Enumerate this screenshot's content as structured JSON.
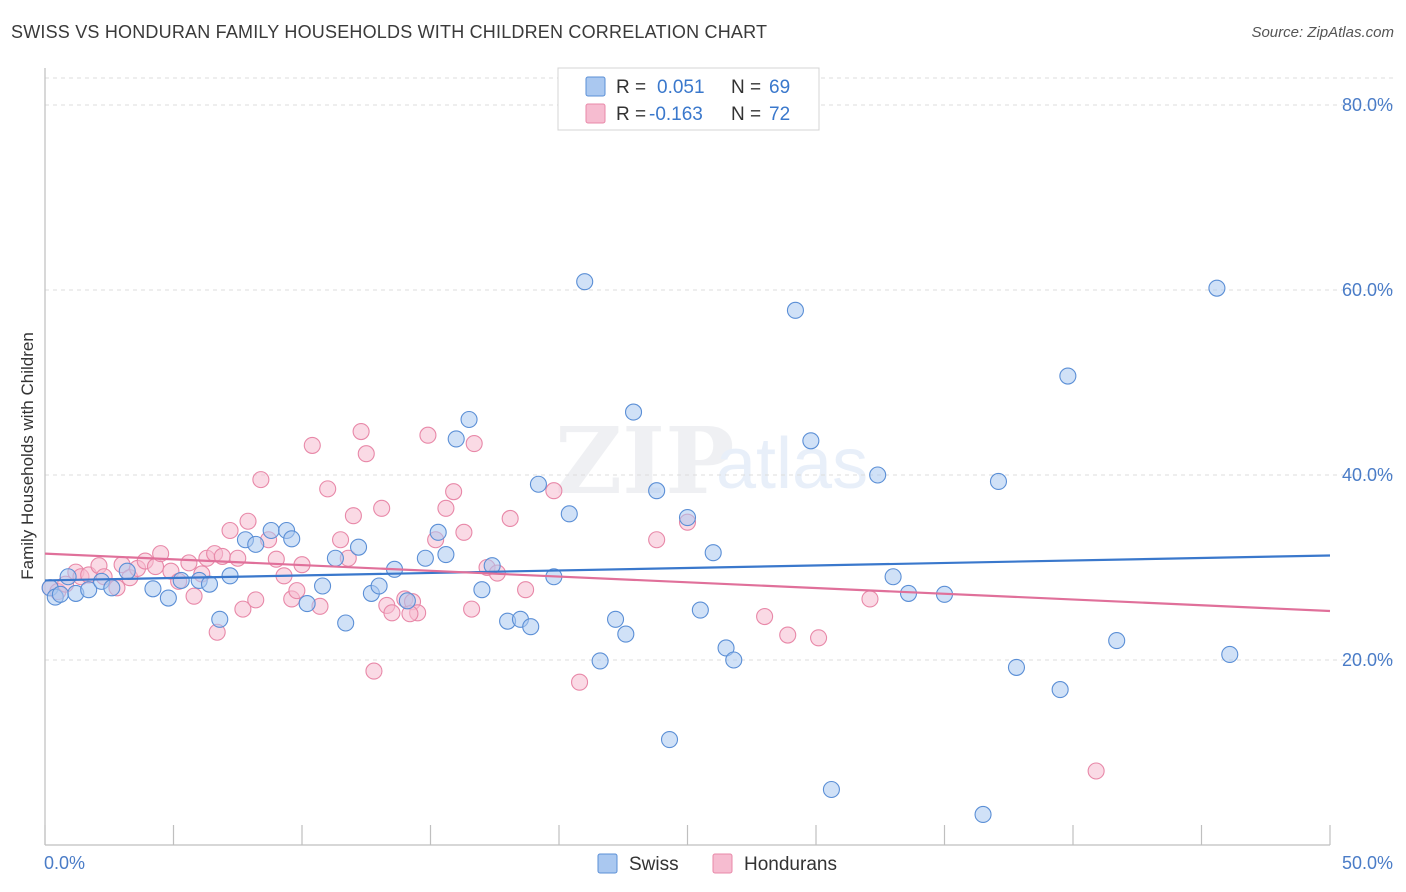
{
  "header": {
    "title": "SWISS VS HONDURAN FAMILY HOUSEHOLDS WITH CHILDREN CORRELATION CHART",
    "source": "Source: ZipAtlas.com"
  },
  "watermark": {
    "zip": "ZIP",
    "atlas": "atlas"
  },
  "colors": {
    "swiss_fill": "#aac8f0",
    "swiss_stroke": "#5b8fd6",
    "swiss_line": "#3a78cc",
    "hond_fill": "#f6bcd0",
    "hond_stroke": "#e888a8",
    "hond_line": "#e0709a",
    "tick_text": "#4a7cc7",
    "grid": "#dcdcdc"
  },
  "legend": {
    "rows": [
      {
        "r_label": "R =",
        "r_value": "0.051",
        "n_label": "N =",
        "n_value": "69"
      },
      {
        "r_label": "R =",
        "r_value": "-0.163",
        "n_label": "N =",
        "n_value": "72"
      }
    ]
  },
  "bottom_legend": {
    "items": [
      "Swiss",
      "Hondurans"
    ]
  },
  "chart_data": {
    "type": "scatter",
    "title": "SWISS VS HONDURAN FAMILY HOUSEHOLDS WITH CHILDREN CORRELATION CHART",
    "ylabel": "Family Households with Children",
    "xlabel": "",
    "xlim": [
      0,
      50
    ],
    "ylim": [
      0,
      84
    ],
    "x_tick_labels": [
      "0.0%",
      "50.0%"
    ],
    "y_ticks": [
      20,
      40,
      60,
      80
    ],
    "y_tick_labels": [
      "20.0%",
      "40.0%",
      "60.0%",
      "80.0%"
    ],
    "grid": "horizontal dashed",
    "series": [
      {
        "name": "Swiss",
        "r": 0.051,
        "n": 69,
        "trend": {
          "x": [
            0,
            50
          ],
          "y": [
            28.6,
            31.3
          ]
        },
        "points": [
          [
            0.2,
            27.8
          ],
          [
            0.4,
            26.8
          ],
          [
            0.6,
            27.1
          ],
          [
            0.9,
            29.0
          ],
          [
            1.2,
            27.2
          ],
          [
            1.7,
            27.6
          ],
          [
            2.2,
            28.5
          ],
          [
            2.6,
            27.8
          ],
          [
            3.2,
            29.6
          ],
          [
            4.2,
            27.7
          ],
          [
            4.8,
            26.7
          ],
          [
            5.3,
            28.6
          ],
          [
            6.0,
            28.6
          ],
          [
            6.4,
            28.2
          ],
          [
            6.8,
            24.4
          ],
          [
            7.2,
            29.1
          ],
          [
            7.8,
            33.0
          ],
          [
            8.2,
            32.5
          ],
          [
            8.8,
            34.0
          ],
          [
            9.4,
            34.0
          ],
          [
            9.6,
            33.1
          ],
          [
            10.2,
            26.1
          ],
          [
            10.8,
            28.0
          ],
          [
            11.3,
            31.0
          ],
          [
            11.7,
            24.0
          ],
          [
            12.2,
            32.2
          ],
          [
            12.7,
            27.2
          ],
          [
            13.0,
            28.0
          ],
          [
            13.6,
            29.8
          ],
          [
            14.1,
            26.4
          ],
          [
            14.8,
            31.0
          ],
          [
            15.3,
            33.8
          ],
          [
            15.6,
            31.4
          ],
          [
            16.0,
            43.9
          ],
          [
            16.5,
            46.0
          ],
          [
            17.0,
            27.6
          ],
          [
            17.4,
            30.2
          ],
          [
            18.0,
            24.2
          ],
          [
            18.5,
            24.4
          ],
          [
            18.9,
            23.6
          ],
          [
            19.2,
            39.0
          ],
          [
            19.8,
            29.0
          ],
          [
            20.4,
            35.8
          ],
          [
            21.0,
            60.9
          ],
          [
            21.6,
            19.9
          ],
          [
            22.2,
            24.4
          ],
          [
            22.6,
            22.8
          ],
          [
            22.9,
            46.8
          ],
          [
            23.8,
            38.3
          ],
          [
            24.3,
            11.4
          ],
          [
            25.0,
            35.4
          ],
          [
            25.5,
            25.4
          ],
          [
            26.0,
            31.6
          ],
          [
            26.5,
            21.3
          ],
          [
            26.8,
            20.0
          ],
          [
            29.2,
            57.8
          ],
          [
            29.8,
            43.7
          ],
          [
            30.6,
            6.0
          ],
          [
            32.4,
            40.0
          ],
          [
            33.0,
            29.0
          ],
          [
            33.6,
            27.2
          ],
          [
            35.0,
            27.1
          ],
          [
            36.5,
            3.3
          ],
          [
            37.1,
            39.3
          ],
          [
            37.8,
            19.2
          ],
          [
            39.5,
            16.8
          ],
          [
            39.8,
            50.7
          ],
          [
            41.7,
            22.1
          ],
          [
            45.6,
            60.2
          ],
          [
            46.1,
            20.6
          ]
        ]
      },
      {
        "name": "Hondurans",
        "r": -0.163,
        "n": 72,
        "trend": {
          "x": [
            0,
            50
          ],
          "y": [
            31.5,
            25.3
          ]
        },
        "points": [
          [
            0.2,
            27.8
          ],
          [
            0.5,
            27.4
          ],
          [
            0.8,
            28.2
          ],
          [
            1.2,
            29.5
          ],
          [
            1.4,
            29.0
          ],
          [
            1.7,
            29.2
          ],
          [
            2.1,
            30.2
          ],
          [
            2.3,
            29.0
          ],
          [
            2.8,
            27.8
          ],
          [
            3.0,
            30.3
          ],
          [
            3.3,
            28.9
          ],
          [
            3.6,
            29.9
          ],
          [
            3.9,
            30.7
          ],
          [
            4.3,
            30.1
          ],
          [
            4.5,
            31.5
          ],
          [
            4.9,
            29.6
          ],
          [
            5.2,
            28.5
          ],
          [
            5.6,
            30.5
          ],
          [
            5.8,
            26.9
          ],
          [
            6.1,
            29.3
          ],
          [
            6.3,
            31.0
          ],
          [
            6.6,
            31.5
          ],
          [
            6.7,
            23.0
          ],
          [
            6.9,
            31.2
          ],
          [
            7.2,
            34.0
          ],
          [
            7.5,
            31.0
          ],
          [
            7.7,
            25.5
          ],
          [
            7.9,
            35.0
          ],
          [
            8.2,
            26.5
          ],
          [
            8.4,
            39.5
          ],
          [
            8.7,
            33.0
          ],
          [
            9.0,
            30.9
          ],
          [
            9.3,
            29.1
          ],
          [
            9.6,
            26.6
          ],
          [
            9.8,
            27.5
          ],
          [
            10.0,
            30.3
          ],
          [
            10.4,
            43.2
          ],
          [
            10.7,
            25.8
          ],
          [
            11.0,
            38.5
          ],
          [
            11.5,
            33.0
          ],
          [
            11.8,
            31.0
          ],
          [
            12.0,
            35.6
          ],
          [
            12.3,
            44.7
          ],
          [
            12.5,
            42.3
          ],
          [
            12.8,
            18.8
          ],
          [
            13.1,
            36.4
          ],
          [
            13.3,
            25.9
          ],
          [
            13.5,
            25.1
          ],
          [
            14.0,
            26.6
          ],
          [
            14.3,
            26.3
          ],
          [
            14.5,
            25.1
          ],
          [
            14.9,
            44.3
          ],
          [
            15.2,
            33.0
          ],
          [
            15.6,
            36.4
          ],
          [
            15.9,
            38.2
          ],
          [
            16.3,
            33.8
          ],
          [
            16.7,
            43.4
          ],
          [
            17.2,
            30.0
          ],
          [
            17.6,
            29.4
          ],
          [
            18.1,
            35.3
          ],
          [
            18.7,
            27.6
          ],
          [
            19.8,
            38.3
          ],
          [
            20.8,
            17.6
          ],
          [
            23.8,
            33.0
          ],
          [
            25.0,
            34.9
          ],
          [
            28.0,
            24.7
          ],
          [
            28.9,
            22.7
          ],
          [
            30.1,
            22.4
          ],
          [
            32.1,
            26.6
          ],
          [
            16.6,
            25.5
          ],
          [
            14.2,
            25.0
          ],
          [
            40.9,
            8.0
          ]
        ]
      }
    ]
  }
}
